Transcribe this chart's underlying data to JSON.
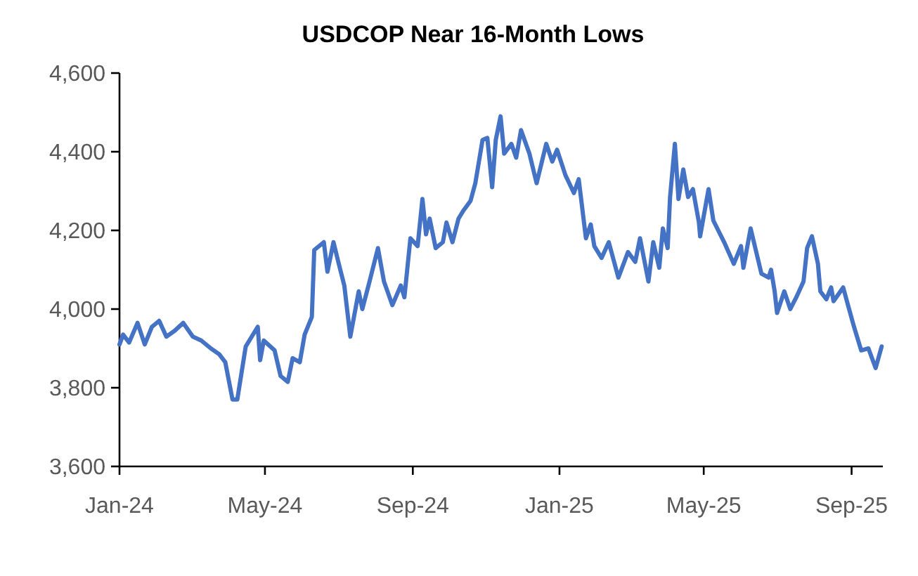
{
  "chart_data": {
    "type": "line",
    "title": "USDCOP Near 16-Month Lows",
    "xlim": [
      "2024-01-01",
      "2025-09-27"
    ],
    "xticks": [
      {
        "value": "2024-01-01",
        "label": "Jan-24"
      },
      {
        "value": "2024-05-01",
        "label": "May-24"
      },
      {
        "value": "2024-09-01",
        "label": "Sep-24"
      },
      {
        "value": "2025-01-01",
        "label": "Jan-25"
      },
      {
        "value": "2025-05-01",
        "label": "May-25"
      },
      {
        "value": "2025-09-01",
        "label": "Sep-25"
      }
    ],
    "ylim": [
      3600,
      4600
    ],
    "yticks": [
      {
        "value": 3600,
        "label": "3,600"
      },
      {
        "value": 3800,
        "label": "3,800"
      },
      {
        "value": 4000,
        "label": "4,000"
      },
      {
        "value": 4200,
        "label": "4,200"
      },
      {
        "value": 4400,
        "label": "4,400"
      },
      {
        "value": 4600,
        "label": "4,600"
      }
    ],
    "grid": false,
    "x": [
      "2024-01-01",
      "2024-01-04",
      "2024-01-09",
      "2024-01-16",
      "2024-01-22",
      "2024-01-28",
      "2024-02-03",
      "2024-02-09",
      "2024-02-16",
      "2024-02-23",
      "2024-03-02",
      "2024-03-09",
      "2024-03-17",
      "2024-03-24",
      "2024-03-29",
      "2024-04-04",
      "2024-04-08",
      "2024-04-15",
      "2024-04-25",
      "2024-04-27",
      "2024-04-30",
      "2024-05-09",
      "2024-05-14",
      "2024-05-20",
      "2024-05-24",
      "2024-05-30",
      "2024-06-03",
      "2024-06-09",
      "2024-06-11",
      "2024-06-19",
      "2024-06-22",
      "2024-06-27",
      "2024-07-01",
      "2024-07-06",
      "2024-07-11",
      "2024-07-18",
      "2024-07-21",
      "2024-07-27",
      "2024-08-03",
      "2024-08-08",
      "2024-08-15",
      "2024-08-22",
      "2024-08-25",
      "2024-08-30",
      "2024-09-05",
      "2024-09-09",
      "2024-09-12",
      "2024-09-15",
      "2024-09-20",
      "2024-09-26",
      "2024-09-29",
      "2024-10-04",
      "2024-10-09",
      "2024-10-13",
      "2024-10-19",
      "2024-10-23",
      "2024-10-29",
      "2024-11-02",
      "2024-11-06",
      "2024-11-09",
      "2024-11-13",
      "2024-11-16",
      "2024-11-22",
      "2024-11-26",
      "2024-11-30",
      "2024-12-07",
      "2024-12-13",
      "2024-12-21",
      "2024-12-26",
      "2024-12-30",
      "2025-01-06",
      "2025-01-13",
      "2025-01-17",
      "2025-01-23",
      "2025-01-27",
      "2025-01-30",
      "2025-02-05",
      "2025-02-11",
      "2025-02-19",
      "2025-02-27",
      "2025-03-05",
      "2025-03-09",
      "2025-03-16",
      "2025-03-20",
      "2025-03-25",
      "2025-03-28",
      "2025-04-01",
      "2025-04-03",
      "2025-04-07",
      "2025-04-10",
      "2025-04-14",
      "2025-04-18",
      "2025-04-22",
      "2025-04-27",
      "2025-04-28",
      "2025-05-05",
      "2025-05-09",
      "2025-05-18",
      "2025-05-26",
      "2025-06-01",
      "2025-06-03",
      "2025-06-09",
      "2025-06-18",
      "2025-06-24",
      "2025-06-26",
      "2025-06-29",
      "2025-07-01",
      "2025-07-07",
      "2025-07-12",
      "2025-07-17",
      "2025-07-23",
      "2025-07-26",
      "2025-07-30",
      "2025-08-04",
      "2025-08-06",
      "2025-08-11",
      "2025-08-15",
      "2025-08-17",
      "2025-08-25",
      "2025-08-29",
      "2025-09-03",
      "2025-09-09",
      "2025-09-15",
      "2025-09-21",
      "2025-09-26"
    ],
    "series": [
      {
        "color": "#4472c4",
        "values": [
          3910,
          3935,
          3915,
          3965,
          3910,
          3955,
          3970,
          3930,
          3945,
          3965,
          3930,
          3920,
          3900,
          3885,
          3865,
          3770,
          3770,
          3905,
          3955,
          3870,
          3920,
          3895,
          3830,
          3815,
          3875,
          3865,
          3935,
          3980,
          4150,
          4170,
          4095,
          4170,
          4120,
          4060,
          3930,
          4045,
          4000,
          4070,
          4155,
          4070,
          4010,
          4060,
          4030,
          4180,
          4160,
          4280,
          4190,
          4230,
          4155,
          4170,
          4220,
          4170,
          4230,
          4250,
          4275,
          4320,
          4430,
          4435,
          4310,
          4430,
          4490,
          4395,
          4420,
          4385,
          4455,
          4395,
          4320,
          4420,
          4375,
          4405,
          4340,
          4295,
          4330,
          4180,
          4215,
          4160,
          4130,
          4170,
          4080,
          4145,
          4120,
          4180,
          4070,
          4170,
          4105,
          4205,
          4155,
          4285,
          4420,
          4280,
          4355,
          4285,
          4305,
          4220,
          4185,
          4305,
          4225,
          4170,
          4115,
          4160,
          4105,
          4205,
          4090,
          4080,
          4100,
          4045,
          3990,
          4045,
          4000,
          4030,
          4070,
          4155,
          4185,
          4115,
          4045,
          4025,
          4055,
          4020,
          4055,
          4010,
          3955,
          3895,
          3900,
          3850,
          3905
        ]
      }
    ]
  }
}
